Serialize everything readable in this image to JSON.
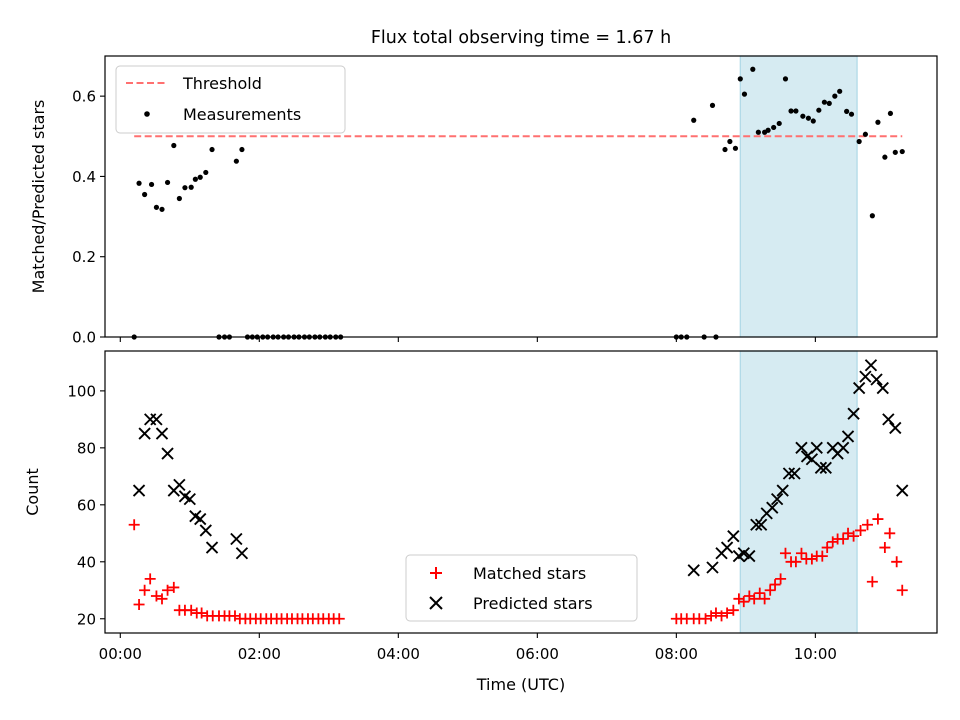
{
  "figure": {
    "title": "Flux total observing time = 1.67 h",
    "xlabel": "Time (UTC)"
  },
  "colors": {
    "threshold": "#ff7070",
    "measurements": "#000000",
    "matched": "#ff0000",
    "predicted": "#000000",
    "highlight": "#add8e6"
  },
  "chart_data": [
    {
      "type": "scatter",
      "ylabel": "Matched/Predicted stars",
      "xlim": [
        -0.22,
        11.75
      ],
      "ylim": [
        0,
        0.7
      ],
      "yticks": [
        0.0,
        0.2,
        0.4,
        0.6
      ],
      "ytick_labels": [
        "0.0",
        "0.2",
        "0.4",
        "0.6"
      ],
      "xticks": [
        0,
        2,
        4,
        6,
        8,
        10
      ],
      "highlight_span": [
        8.92,
        10.6
      ],
      "threshold": {
        "name": "Threshold",
        "y": 0.5,
        "x_range": [
          0.2,
          11.25
        ],
        "style": "dashed"
      },
      "legend": {
        "location": "upper left",
        "entries": [
          "Threshold",
          "Measurements"
        ]
      },
      "series": [
        {
          "name": "Measurements",
          "marker": "dot",
          "points": [
            [
              0.2,
              0.0
            ],
            [
              0.27,
              0.383
            ],
            [
              0.35,
              0.355
            ],
            [
              0.45,
              0.38
            ],
            [
              0.52,
              0.323
            ],
            [
              0.6,
              0.318
            ],
            [
              0.68,
              0.385
            ],
            [
              0.77,
              0.477
            ],
            [
              0.85,
              0.345
            ],
            [
              0.93,
              0.372
            ],
            [
              1.02,
              0.373
            ],
            [
              1.08,
              0.393
            ],
            [
              1.15,
              0.398
            ],
            [
              1.23,
              0.41
            ],
            [
              1.32,
              0.467
            ],
            [
              1.42,
              0.0
            ],
            [
              1.5,
              0.0
            ],
            [
              1.57,
              0.0
            ],
            [
              1.67,
              0.438
            ],
            [
              1.75,
              0.467
            ],
            [
              1.83,
              0.0
            ],
            [
              1.9,
              0.0
            ],
            [
              1.97,
              0.0
            ],
            [
              2.05,
              0.0
            ],
            [
              2.12,
              0.0
            ],
            [
              2.2,
              0.0
            ],
            [
              2.27,
              0.0
            ],
            [
              2.35,
              0.0
            ],
            [
              2.42,
              0.0
            ],
            [
              2.5,
              0.0
            ],
            [
              2.57,
              0.0
            ],
            [
              2.65,
              0.0
            ],
            [
              2.72,
              0.0
            ],
            [
              2.8,
              0.0
            ],
            [
              2.87,
              0.0
            ],
            [
              2.95,
              0.0
            ],
            [
              3.02,
              0.0
            ],
            [
              3.1,
              0.0
            ],
            [
              3.17,
              0.0
            ],
            [
              8.0,
              0.0
            ],
            [
              8.07,
              0.0
            ],
            [
              8.15,
              0.0
            ],
            [
              8.25,
              0.54
            ],
            [
              8.4,
              0.0
            ],
            [
              8.52,
              0.577
            ],
            [
              8.57,
              0.0
            ],
            [
              8.7,
              0.467
            ],
            [
              8.77,
              0.487
            ],
            [
              8.85,
              0.47
            ],
            [
              8.92,
              0.643
            ],
            [
              8.98,
              0.605
            ],
            [
              9.1,
              0.667
            ],
            [
              9.18,
              0.51
            ],
            [
              9.27,
              0.51
            ],
            [
              9.32,
              0.515
            ],
            [
              9.4,
              0.522
            ],
            [
              9.48,
              0.532
            ],
            [
              9.57,
              0.643
            ],
            [
              9.65,
              0.563
            ],
            [
              9.72,
              0.563
            ],
            [
              9.82,
              0.55
            ],
            [
              9.9,
              0.545
            ],
            [
              9.97,
              0.538
            ],
            [
              10.05,
              0.565
            ],
            [
              10.13,
              0.585
            ],
            [
              10.2,
              0.582
            ],
            [
              10.28,
              0.6
            ],
            [
              10.35,
              0.612
            ],
            [
              10.45,
              0.562
            ],
            [
              10.52,
              0.555
            ],
            [
              10.63,
              0.487
            ],
            [
              10.72,
              0.505
            ],
            [
              10.82,
              0.302
            ],
            [
              10.9,
              0.535
            ],
            [
              11.0,
              0.448
            ],
            [
              11.08,
              0.557
            ],
            [
              11.15,
              0.46
            ],
            [
              11.25,
              0.462
            ]
          ]
        }
      ]
    },
    {
      "type": "scatter",
      "ylabel": "Count",
      "xlabel": "Time (UTC)",
      "xlim": [
        -0.22,
        11.75
      ],
      "ylim": [
        15,
        114
      ],
      "yticks": [
        20,
        40,
        60,
        80,
        100
      ],
      "ytick_labels": [
        "20",
        "40",
        "60",
        "80",
        "100"
      ],
      "xticks": [
        0,
        2,
        4,
        6,
        8,
        10
      ],
      "xtick_labels": [
        "00:00",
        "02:00",
        "04:00",
        "06:00",
        "08:00",
        "10:00"
      ],
      "highlight_span": [
        8.92,
        10.6
      ],
      "legend": {
        "location": "lower center",
        "entries": [
          "Matched stars",
          "Predicted stars"
        ]
      },
      "series": [
        {
          "name": "Matched stars",
          "marker": "plus",
          "points": [
            [
              0.2,
              53
            ],
            [
              0.27,
              25
            ],
            [
              0.35,
              30
            ],
            [
              0.43,
              34
            ],
            [
              0.52,
              28
            ],
            [
              0.6,
              27
            ],
            [
              0.68,
              30
            ],
            [
              0.77,
              31
            ],
            [
              0.85,
              23
            ],
            [
              0.93,
              23
            ],
            [
              1.02,
              23
            ],
            [
              1.1,
              22
            ],
            [
              1.17,
              22
            ],
            [
              1.25,
              21
            ],
            [
              1.33,
              21
            ],
            [
              1.42,
              21
            ],
            [
              1.5,
              21
            ],
            [
              1.57,
              21
            ],
            [
              1.65,
              21
            ],
            [
              1.72,
              20
            ],
            [
              1.8,
              20
            ],
            [
              1.87,
              20
            ],
            [
              1.95,
              20
            ],
            [
              2.02,
              20
            ],
            [
              2.1,
              20
            ],
            [
              2.17,
              20
            ],
            [
              2.25,
              20
            ],
            [
              2.32,
              20
            ],
            [
              2.4,
              20
            ],
            [
              2.47,
              20
            ],
            [
              2.55,
              20
            ],
            [
              2.62,
              20
            ],
            [
              2.7,
              20
            ],
            [
              2.77,
              20
            ],
            [
              2.85,
              20
            ],
            [
              2.92,
              20
            ],
            [
              3.0,
              20
            ],
            [
              3.07,
              20
            ],
            [
              3.15,
              20
            ],
            [
              8.0,
              20
            ],
            [
              8.07,
              20
            ],
            [
              8.15,
              20
            ],
            [
              8.25,
              20
            ],
            [
              8.33,
              20
            ],
            [
              8.42,
              20
            ],
            [
              8.5,
              21
            ],
            [
              8.57,
              22
            ],
            [
              8.65,
              21
            ],
            [
              8.73,
              22
            ],
            [
              8.82,
              23
            ],
            [
              8.9,
              27
            ],
            [
              8.97,
              26
            ],
            [
              9.05,
              28
            ],
            [
              9.12,
              27
            ],
            [
              9.2,
              29
            ],
            [
              9.27,
              27
            ],
            [
              9.35,
              30
            ],
            [
              9.42,
              32
            ],
            [
              9.5,
              34
            ],
            [
              9.57,
              43
            ],
            [
              9.65,
              40
            ],
            [
              9.72,
              40
            ],
            [
              9.8,
              43
            ],
            [
              9.87,
              41
            ],
            [
              9.95,
              41
            ],
            [
              10.02,
              42
            ],
            [
              10.1,
              42
            ],
            [
              10.17,
              45
            ],
            [
              10.25,
              47
            ],
            [
              10.32,
              48
            ],
            [
              10.4,
              48
            ],
            [
              10.47,
              50
            ],
            [
              10.55,
              49
            ],
            [
              10.65,
              51
            ],
            [
              10.75,
              53
            ],
            [
              10.82,
              33
            ],
            [
              10.9,
              55
            ],
            [
              11.0,
              45
            ],
            [
              11.07,
              50
            ],
            [
              11.17,
              40
            ],
            [
              11.25,
              30
            ]
          ]
        },
        {
          "name": "Predicted stars",
          "marker": "x",
          "points": [
            [
              0.27,
              65
            ],
            [
              0.35,
              85
            ],
            [
              0.43,
              90
            ],
            [
              0.52,
              90
            ],
            [
              0.6,
              85
            ],
            [
              0.68,
              78
            ],
            [
              0.77,
              65
            ],
            [
              0.85,
              67
            ],
            [
              0.93,
              63
            ],
            [
              1.0,
              62
            ],
            [
              1.08,
              56
            ],
            [
              1.15,
              55
            ],
            [
              1.23,
              51
            ],
            [
              1.32,
              45
            ],
            [
              1.67,
              48
            ],
            [
              1.75,
              43
            ],
            [
              8.25,
              37
            ],
            [
              8.52,
              38
            ],
            [
              8.65,
              43
            ],
            [
              8.73,
              45
            ],
            [
              8.82,
              49
            ],
            [
              8.9,
              42
            ],
            [
              8.97,
              43
            ],
            [
              9.05,
              42
            ],
            [
              9.15,
              53
            ],
            [
              9.22,
              53
            ],
            [
              9.3,
              57
            ],
            [
              9.38,
              59
            ],
            [
              9.45,
              62
            ],
            [
              9.53,
              65
            ],
            [
              9.62,
              71
            ],
            [
              9.7,
              71
            ],
            [
              9.8,
              80
            ],
            [
              9.88,
              77
            ],
            [
              9.95,
              76
            ],
            [
              10.02,
              80
            ],
            [
              10.08,
              73
            ],
            [
              10.15,
              73
            ],
            [
              10.25,
              80
            ],
            [
              10.32,
              78
            ],
            [
              10.4,
              80
            ],
            [
              10.47,
              84
            ],
            [
              10.55,
              92
            ],
            [
              10.63,
              101
            ],
            [
              10.72,
              105
            ],
            [
              10.8,
              109
            ],
            [
              10.88,
              104
            ],
            [
              10.97,
              101
            ],
            [
              11.05,
              90
            ],
            [
              11.15,
              87
            ],
            [
              11.25,
              65
            ]
          ]
        }
      ]
    }
  ]
}
